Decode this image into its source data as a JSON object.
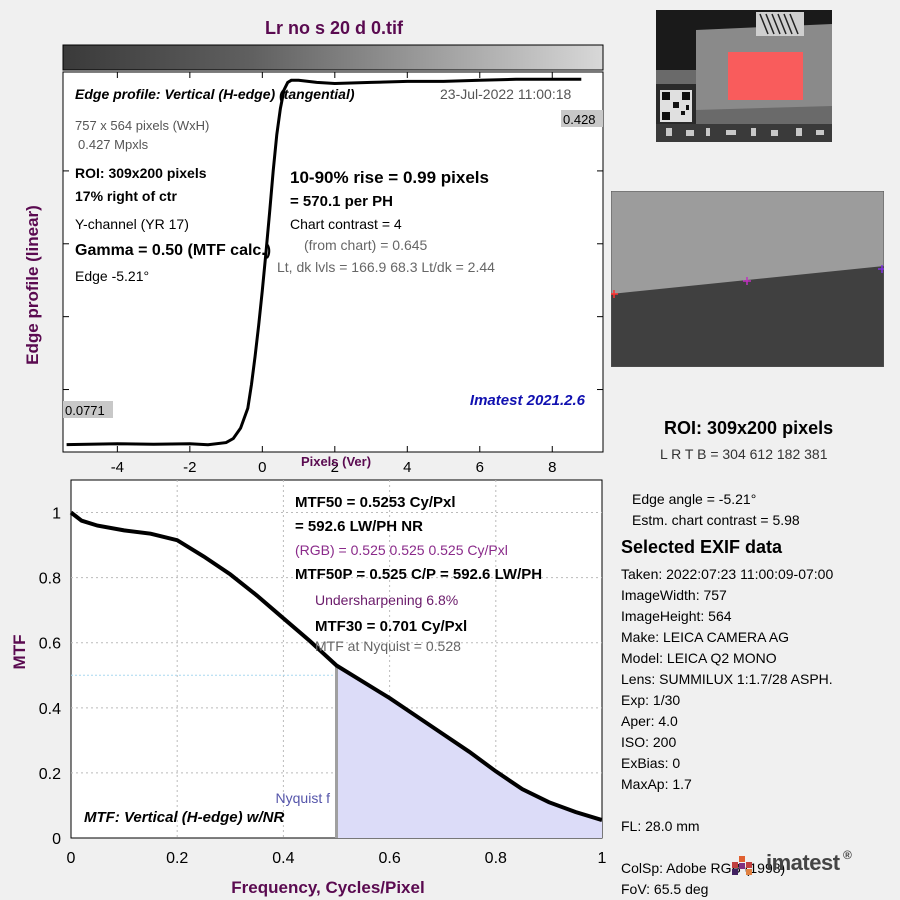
{
  "title": "Lr no s 20 d 0.tif",
  "edge_chart": {
    "type": "line",
    "heading": "Edge profile: Vertical (H-edge) (tangential)",
    "date": "23-Jul-2022 11:00:18",
    "ylabel": "Edge profile (linear)",
    "xlabel": "Pixels (Ver)",
    "xlim": [
      -5.5,
      9.4
    ],
    "ylim": [
      0.07,
      0.435
    ],
    "x_ticks": [
      "-4",
      "-2",
      "0",
      "2",
      "4",
      "6",
      "8"
    ],
    "x_tick_values": [
      -4,
      -2,
      0,
      2,
      4,
      6,
      8
    ],
    "y_tick_values": [
      0.13,
      0.2,
      0.27,
      0.34
    ],
    "top_value_label": "0.428",
    "bottom_value_label": "0.0771",
    "x": [
      -5.4,
      -4,
      -3,
      -2,
      -1.5,
      -1.0,
      -0.8,
      -0.6,
      -0.4,
      -0.3,
      -0.2,
      -0.1,
      0,
      0.1,
      0.2,
      0.3,
      0.4,
      0.5,
      0.6,
      0.7,
      0.8,
      1.0,
      1.5,
      2,
      3,
      4,
      5,
      6,
      7,
      8,
      8.8
    ],
    "y": [
      0.0771,
      0.078,
      0.0775,
      0.078,
      0.077,
      0.079,
      0.083,
      0.093,
      0.112,
      0.135,
      0.162,
      0.192,
      0.225,
      0.262,
      0.3,
      0.34,
      0.375,
      0.4,
      0.418,
      0.425,
      0.427,
      0.427,
      0.425,
      0.424,
      0.425,
      0.426,
      0.426,
      0.427,
      0.428,
      0.428,
      0.428
    ],
    "info_left": [
      "757 x 564 pixels (WxH)",
      "0.427 Mpxls",
      "ROI:  309x200 pixels",
      "17% right of ctr",
      "Y-channel  (YR 17)",
      "Gamma = 0.50 (MTF calc.)",
      "Edge  -5.21°"
    ],
    "rise_line1": "10-90% rise = 0.99 pixels",
    "rise_line2": "=  570.1 per PH",
    "contrast_line": "Chart contrast = 4",
    "from_chart_line": "(from chart) = 0.645",
    "levels_line": "Lt, dk lvls = 166.9  68.3  Lt/dk = 2.44",
    "version": "Imatest 2021.2.6"
  },
  "mtf_chart": {
    "type": "area",
    "xlabel": "Frequency, Cycles/Pixel",
    "ylabel": "MTF",
    "xlim": [
      0,
      1
    ],
    "ylim": [
      0,
      1.1
    ],
    "x_ticks": [
      "0",
      "0.2",
      "0.4",
      "0.6",
      "0.8",
      "1"
    ],
    "x_tick_values": [
      0,
      0.2,
      0.4,
      0.6,
      0.8,
      1
    ],
    "y_ticks": [
      "0",
      "0.2",
      "0.4",
      "0.6",
      "0.8",
      "1"
    ],
    "y_tick_values": [
      0,
      0.2,
      0.4,
      0.6,
      0.8,
      1
    ],
    "x": [
      0,
      0.02,
      0.05,
      0.1,
      0.15,
      0.2,
      0.25,
      0.3,
      0.35,
      0.4,
      0.45,
      0.5,
      0.55,
      0.6,
      0.65,
      0.7,
      0.75,
      0.8,
      0.85,
      0.9,
      0.95,
      1.0
    ],
    "y": [
      1.0,
      0.975,
      0.96,
      0.945,
      0.935,
      0.915,
      0.865,
      0.81,
      0.745,
      0.675,
      0.605,
      0.53,
      0.48,
      0.43,
      0.375,
      0.32,
      0.265,
      0.205,
      0.15,
      0.11,
      0.08,
      0.055
    ],
    "nyquist_x": 0.5,
    "mtf50_line_y": 0.5,
    "nyquist_label": "Nyquist f",
    "corner_label": "MTF: Vertical (H-edge) w/NR",
    "mtf50": "MTF50 = 0.5253 Cy/Pxl",
    "mtf50_lw": "= 592.6 LW/PH  NR",
    "rgb": "(RGB) = 0.525  0.525  0.525 Cy/Pxl",
    "mtf50p": "MTF50P = 0.525 C/P = 592.6 LW/PH",
    "undersharpening": "Undersharpening  6.8%",
    "mtf30": "MTF30 = 0.701 Cy/Pxl",
    "mtf_nyquist": "MTF at Nyquist = 0.528",
    "colors": {
      "fill": "#dcdcf8",
      "line": "#000000",
      "nyquist": "#a0a0a0",
      "mtf50": "#a8d8f0"
    }
  },
  "right_panel": {
    "roi_title": "ROI:  309x200 pixels",
    "roi_coords": "L R  T B = 304 612  182 381",
    "edge_angle": "Edge angle = -5.21°",
    "chart_contrast": "Estm. chart contrast = 5.98",
    "exif_heading": "Selected EXIF data",
    "exif": [
      "Taken: 2022:07:23 11:00:09-07:00",
      "ImageWidth:  757",
      "ImageHeight:  564",
      "Make:  LEICA CAMERA AG",
      "Model:  LEICA Q2 MONO",
      "Lens:   SUMMILUX 1:1.7/28 ASPH.",
      "Exp:    1/30",
      "Aper:   4.0",
      "ISO:    200",
      "ExBias:  0",
      "MaxAp:  1.7",
      "FL:     28.0 mm",
      "ColSp:  Adobe RGB (1998)",
      "FoV:   65.5 deg"
    ],
    "logo": "imatest",
    "logo_mark": "®"
  }
}
